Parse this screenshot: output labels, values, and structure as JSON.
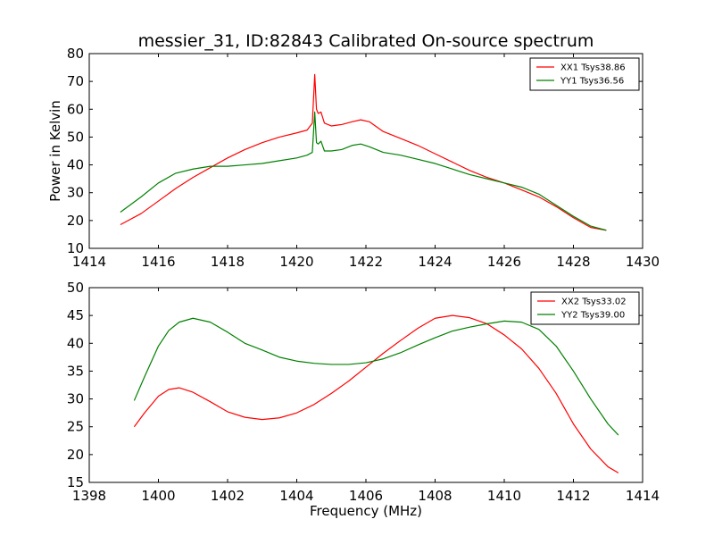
{
  "chart_data": [
    {
      "type": "line",
      "title": "messier_31, ID:82843 Calibrated On-source spectrum",
      "xlabel": "",
      "ylabel": "Power in Kelvin",
      "xlim": [
        1414,
        1430
      ],
      "ylim": [
        10,
        80
      ],
      "xticks": [
        1414,
        1416,
        1418,
        1420,
        1422,
        1424,
        1426,
        1428,
        1430
      ],
      "yticks": [
        10,
        20,
        30,
        40,
        50,
        60,
        70,
        80
      ],
      "grid": false,
      "legend_position": "top-right",
      "series": [
        {
          "name": "XX1 Tsys38.86",
          "color": "#ff0000",
          "x": [
            1414.9,
            1415.5,
            1416.0,
            1416.5,
            1417.0,
            1417.5,
            1418.0,
            1418.5,
            1419.0,
            1419.5,
            1420.0,
            1420.3,
            1420.45,
            1420.52,
            1420.57,
            1420.62,
            1420.7,
            1420.8,
            1421.0,
            1421.3,
            1421.6,
            1421.85,
            1422.1,
            1422.5,
            1423.0,
            1423.5,
            1424.0,
            1424.5,
            1425.0,
            1425.5,
            1426.0,
            1426.5,
            1427.0,
            1427.5,
            1428.0,
            1428.5,
            1428.95
          ],
          "y": [
            18.5,
            22.5,
            27.0,
            31.5,
            35.5,
            39.0,
            42.5,
            45.5,
            48.0,
            50.0,
            51.5,
            52.5,
            55.0,
            72.5,
            60.0,
            58.5,
            59.0,
            55.0,
            54.0,
            54.5,
            55.5,
            56.2,
            55.5,
            52.0,
            49.5,
            47.0,
            44.0,
            41.0,
            38.0,
            35.5,
            33.5,
            31.0,
            28.5,
            25.0,
            21.0,
            17.5,
            16.5
          ]
        },
        {
          "name": "YY1 Tsys36.56",
          "color": "#008000",
          "x": [
            1414.9,
            1415.5,
            1416.0,
            1416.5,
            1417.0,
            1417.5,
            1418.0,
            1418.5,
            1419.0,
            1419.5,
            1420.0,
            1420.3,
            1420.45,
            1420.52,
            1420.57,
            1420.62,
            1420.7,
            1420.8,
            1421.0,
            1421.3,
            1421.6,
            1421.85,
            1422.1,
            1422.5,
            1423.0,
            1423.5,
            1424.0,
            1424.5,
            1425.0,
            1425.5,
            1426.0,
            1426.5,
            1427.0,
            1427.5,
            1428.0,
            1428.5,
            1428.95
          ],
          "y": [
            23.0,
            28.5,
            33.5,
            37.0,
            38.5,
            39.5,
            39.5,
            40.0,
            40.5,
            41.5,
            42.5,
            43.5,
            44.5,
            59.0,
            48.0,
            47.5,
            48.5,
            45.0,
            45.0,
            45.5,
            47.0,
            47.5,
            46.5,
            44.5,
            43.5,
            42.0,
            40.5,
            38.5,
            36.5,
            35.0,
            33.5,
            32.0,
            29.5,
            25.5,
            21.5,
            18.0,
            16.5
          ]
        }
      ]
    },
    {
      "type": "line",
      "title": "",
      "xlabel": "Frequency (MHz)",
      "ylabel": "",
      "xlim": [
        1398,
        1414
      ],
      "ylim": [
        15,
        50
      ],
      "xticks": [
        1398,
        1400,
        1402,
        1404,
        1406,
        1408,
        1410,
        1412,
        1414
      ],
      "yticks": [
        15,
        20,
        25,
        30,
        35,
        40,
        45,
        50
      ],
      "grid": false,
      "legend_position": "top-right",
      "series": [
        {
          "name": "XX2 Tsys33.02",
          "color": "#ff0000",
          "x": [
            1399.3,
            1399.6,
            1400.0,
            1400.3,
            1400.6,
            1401.0,
            1401.5,
            1402.0,
            1402.5,
            1403.0,
            1403.5,
            1404.0,
            1404.5,
            1405.0,
            1405.5,
            1406.0,
            1406.5,
            1407.0,
            1407.5,
            1408.0,
            1408.5,
            1409.0,
            1409.5,
            1410.0,
            1410.5,
            1411.0,
            1411.5,
            1412.0,
            1412.5,
            1413.0,
            1413.3
          ],
          "y": [
            25.0,
            27.5,
            30.5,
            31.7,
            32.0,
            31.2,
            29.5,
            27.7,
            26.7,
            26.3,
            26.6,
            27.5,
            29.0,
            31.0,
            33.2,
            35.7,
            38.2,
            40.5,
            42.7,
            44.5,
            45.0,
            44.6,
            43.5,
            41.5,
            39.0,
            35.5,
            31.0,
            25.5,
            21.0,
            17.8,
            16.7
          ]
        },
        {
          "name": "YY2 Tsys39.00",
          "color": "#008000",
          "x": [
            1399.3,
            1399.6,
            1400.0,
            1400.3,
            1400.6,
            1401.0,
            1401.5,
            1402.0,
            1402.5,
            1403.0,
            1403.5,
            1404.0,
            1404.5,
            1405.0,
            1405.5,
            1406.0,
            1406.5,
            1407.0,
            1407.5,
            1408.0,
            1408.5,
            1409.0,
            1409.5,
            1410.0,
            1410.5,
            1411.0,
            1411.5,
            1412.0,
            1412.5,
            1413.0,
            1413.3
          ],
          "y": [
            29.7,
            34.0,
            39.5,
            42.3,
            43.8,
            44.5,
            43.8,
            42.0,
            40.0,
            38.8,
            37.5,
            36.8,
            36.4,
            36.2,
            36.2,
            36.5,
            37.2,
            38.3,
            39.7,
            41.0,
            42.2,
            42.9,
            43.5,
            44.0,
            43.8,
            42.5,
            39.5,
            35.0,
            30.0,
            25.5,
            23.5
          ]
        }
      ]
    }
  ]
}
